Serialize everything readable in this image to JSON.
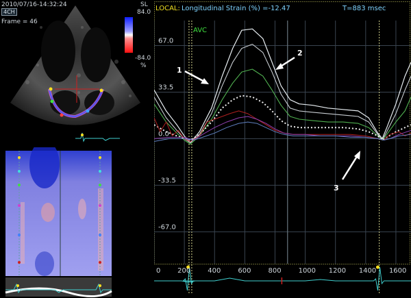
{
  "echo": {
    "timestamp": "2010/07/16-14:32:24",
    "view_button": "4CH",
    "frame_label": "Frame = 46",
    "colorbar_title": "SL",
    "colorbar_max": "84.0",
    "colorbar_min": "-84.0",
    "colorbar_unit": "%"
  },
  "header": {
    "local_label": "LOCAL:",
    "title": "Longitudinal Strain (%) =-12.47",
    "time_readout": "T=883 msec"
  },
  "annotations": {
    "avc": "AVC",
    "arrow_1": "1",
    "arrow_2": "2",
    "arrow_3": "3"
  },
  "colors": {
    "background": "#000000",
    "accent_yellow": "#f0e020",
    "text_cyan": "#7fd4ff",
    "avc_green": "#40e040",
    "ecg_cyan": "#40d0d0"
  },
  "chart_data": {
    "type": "line",
    "title": "Longitudinal Strain (%) =-12.47",
    "xlabel": "",
    "ylabel": "",
    "x_tick_labels": [
      "0",
      "200",
      "400",
      "600",
      "800",
      "1000",
      "1200",
      "1400",
      "1600"
    ],
    "y_tick_labels": [
      "67.0",
      "33.5",
      "0.0",
      "-33.5",
      "-67.0"
    ],
    "xlim": [
      0,
      1700
    ],
    "ylim": [
      -90,
      85
    ],
    "grid": true,
    "markers": {
      "avc_ms": 240,
      "t_ms": 883,
      "cycle_end_ms": 1490
    },
    "series": [
      {
        "color": "#e8eef2",
        "width": 1.2,
        "dash": "",
        "points": [
          [
            0,
            35
          ],
          [
            80,
            20
          ],
          [
            150,
            10
          ],
          [
            200,
            2
          ],
          [
            240,
            -3
          ],
          [
            300,
            5
          ],
          [
            380,
            22
          ],
          [
            450,
            45
          ],
          [
            520,
            65
          ],
          [
            580,
            78
          ],
          [
            650,
            79
          ],
          [
            720,
            72
          ],
          [
            780,
            55
          ],
          [
            840,
            38
          ],
          [
            900,
            28
          ],
          [
            960,
            25
          ],
          [
            1050,
            24
          ],
          [
            1150,
            22
          ],
          [
            1250,
            21
          ],
          [
            1350,
            20
          ],
          [
            1420,
            15
          ],
          [
            1480,
            4
          ],
          [
            1510,
            0
          ],
          [
            1540,
            8
          ],
          [
            1600,
            25
          ],
          [
            1660,
            45
          ],
          [
            1700,
            55
          ]
        ]
      },
      {
        "color": "#c8cdd2",
        "width": 1.1,
        "dash": "",
        "points": [
          [
            0,
            30
          ],
          [
            80,
            15
          ],
          [
            150,
            6
          ],
          [
            200,
            0
          ],
          [
            240,
            -3
          ],
          [
            300,
            3
          ],
          [
            380,
            18
          ],
          [
            450,
            38
          ],
          [
            520,
            55
          ],
          [
            580,
            65
          ],
          [
            650,
            68
          ],
          [
            720,
            62
          ],
          [
            780,
            48
          ],
          [
            840,
            32
          ],
          [
            900,
            22
          ],
          [
            960,
            20
          ],
          [
            1050,
            19
          ],
          [
            1150,
            18
          ],
          [
            1250,
            17
          ],
          [
            1350,
            16
          ],
          [
            1420,
            12
          ],
          [
            1480,
            3
          ],
          [
            1510,
            -1
          ],
          [
            1540,
            5
          ],
          [
            1600,
            18
          ],
          [
            1660,
            35
          ],
          [
            1700,
            45
          ]
        ]
      },
      {
        "color": "#50b050",
        "width": 1.1,
        "dash": "",
        "points": [
          [
            0,
            25
          ],
          [
            80,
            12
          ],
          [
            150,
            4
          ],
          [
            200,
            -1
          ],
          [
            240,
            -4
          ],
          [
            300,
            2
          ],
          [
            380,
            14
          ],
          [
            450,
            28
          ],
          [
            520,
            40
          ],
          [
            580,
            48
          ],
          [
            650,
            50
          ],
          [
            720,
            45
          ],
          [
            780,
            35
          ],
          [
            840,
            24
          ],
          [
            900,
            16
          ],
          [
            960,
            14
          ],
          [
            1050,
            13
          ],
          [
            1150,
            12
          ],
          [
            1250,
            12
          ],
          [
            1350,
            11
          ],
          [
            1420,
            8
          ],
          [
            1480,
            2
          ],
          [
            1510,
            -1
          ],
          [
            1540,
            3
          ],
          [
            1600,
            12
          ],
          [
            1660,
            20
          ],
          [
            1700,
            30
          ]
        ]
      },
      {
        "color": "#f0f0f0",
        "width": 2.0,
        "dash": "2,3",
        "points": [
          [
            0,
            10
          ],
          [
            80,
            5
          ],
          [
            150,
            2
          ],
          [
            200,
            0
          ],
          [
            240,
            -1
          ],
          [
            300,
            3
          ],
          [
            380,
            12
          ],
          [
            450,
            22
          ],
          [
            520,
            28
          ],
          [
            580,
            31
          ],
          [
            650,
            30
          ],
          [
            720,
            26
          ],
          [
            780,
            20
          ],
          [
            840,
            13
          ],
          [
            900,
            9
          ],
          [
            960,
            8
          ],
          [
            1050,
            8
          ],
          [
            1150,
            8
          ],
          [
            1250,
            8
          ],
          [
            1350,
            7
          ],
          [
            1420,
            5
          ],
          [
            1480,
            2
          ],
          [
            1510,
            -1
          ],
          [
            1540,
            1
          ],
          [
            1600,
            5
          ],
          [
            1660,
            8
          ],
          [
            1700,
            10
          ]
        ]
      },
      {
        "color": "#b02020",
        "width": 1.0,
        "dash": "",
        "points": [
          [
            0,
            15
          ],
          [
            40,
            5
          ],
          [
            80,
            12
          ],
          [
            120,
            2
          ],
          [
            160,
            6
          ],
          [
            200,
            0
          ],
          [
            240,
            -2
          ],
          [
            300,
            2
          ],
          [
            350,
            12
          ],
          [
            400,
            14
          ],
          [
            450,
            16
          ],
          [
            500,
            18
          ],
          [
            560,
            20
          ],
          [
            620,
            18
          ],
          [
            680,
            14
          ],
          [
            740,
            10
          ],
          [
            800,
            6
          ],
          [
            860,
            4
          ],
          [
            920,
            3
          ],
          [
            1000,
            3
          ],
          [
            1100,
            3
          ],
          [
            1200,
            3
          ],
          [
            1300,
            3
          ],
          [
            1400,
            2
          ],
          [
            1480,
            0
          ],
          [
            1520,
            -1
          ],
          [
            1560,
            3
          ],
          [
            1620,
            5
          ],
          [
            1660,
            2
          ],
          [
            1700,
            4
          ]
        ]
      },
      {
        "color": "#9040b0",
        "width": 1.0,
        "dash": "",
        "points": [
          [
            0,
            0
          ],
          [
            100,
            1
          ],
          [
            200,
            1
          ],
          [
            260,
            -1
          ],
          [
            320,
            3
          ],
          [
            400,
            8
          ],
          [
            480,
            12
          ],
          [
            560,
            15
          ],
          [
            620,
            16
          ],
          [
            680,
            14
          ],
          [
            740,
            11
          ],
          [
            800,
            7
          ],
          [
            860,
            4
          ],
          [
            920,
            3
          ],
          [
            1000,
            3
          ],
          [
            1100,
            2
          ],
          [
            1200,
            2
          ],
          [
            1300,
            2
          ],
          [
            1400,
            1
          ],
          [
            1480,
            0
          ],
          [
            1520,
            -1
          ],
          [
            1560,
            0
          ],
          [
            1620,
            3
          ],
          [
            1700,
            6
          ]
        ]
      },
      {
        "color": "#6080c0",
        "width": 1.0,
        "dash": "",
        "points": [
          [
            0,
            -2
          ],
          [
            100,
            0
          ],
          [
            200,
            0
          ],
          [
            260,
            -1
          ],
          [
            320,
            1
          ],
          [
            400,
            4
          ],
          [
            480,
            8
          ],
          [
            560,
            11
          ],
          [
            620,
            12
          ],
          [
            680,
            11
          ],
          [
            740,
            8
          ],
          [
            800,
            5
          ],
          [
            860,
            3
          ],
          [
            920,
            2
          ],
          [
            1000,
            2
          ],
          [
            1100,
            2
          ],
          [
            1200,
            2
          ],
          [
            1300,
            1
          ],
          [
            1400,
            1
          ],
          [
            1480,
            0
          ],
          [
            1520,
            -1
          ],
          [
            1560,
            0
          ],
          [
            1620,
            2
          ],
          [
            1700,
            3
          ]
        ]
      }
    ]
  }
}
